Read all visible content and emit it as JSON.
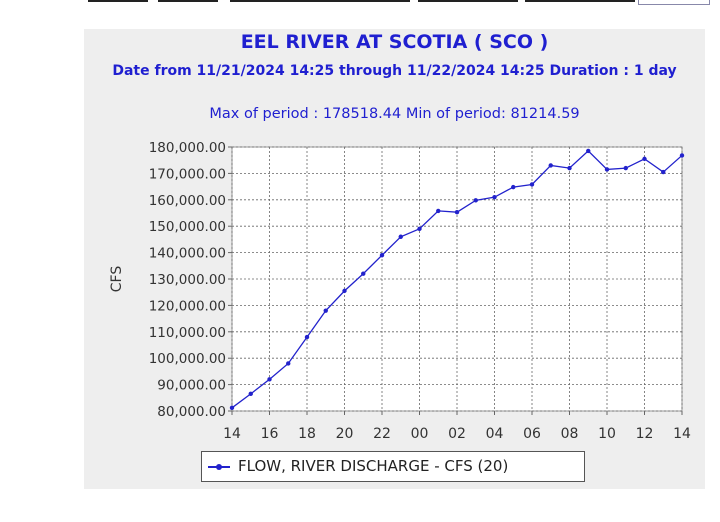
{
  "chart_data": {
    "type": "line",
    "title": "EEL RIVER AT SCOTIA ( SCO )",
    "subtitle": "Date from 11/21/2024 14:25 through 11/22/2024 14:25 Duration : 1 day",
    "max_min": "Max of period : 178518.44  Min of period: 81214.59",
    "xlabel": "",
    "ylabel": "CFS",
    "ylim": [
      80000,
      180000
    ],
    "y_ticks": [
      {
        "value": 80000,
        "label": "80,000.00"
      },
      {
        "value": 90000,
        "label": "90,000.00"
      },
      {
        "value": 100000,
        "label": "100,000.00"
      },
      {
        "value": 110000,
        "label": "110,000.00"
      },
      {
        "value": 120000,
        "label": "120,000.00"
      },
      {
        "value": 130000,
        "label": "130,000.00"
      },
      {
        "value": 140000,
        "label": "140,000.00"
      },
      {
        "value": 150000,
        "label": "150,000.00"
      },
      {
        "value": 160000,
        "label": "160,000.00"
      },
      {
        "value": 170000,
        "label": "170,000.00"
      },
      {
        "value": 180000,
        "label": "180,000.00"
      }
    ],
    "x_range": [
      14,
      38
    ],
    "x_ticks": [
      {
        "value": 14,
        "label": "14"
      },
      {
        "value": 16,
        "label": "16"
      },
      {
        "value": 18,
        "label": "18"
      },
      {
        "value": 20,
        "label": "20"
      },
      {
        "value": 22,
        "label": "22"
      },
      {
        "value": 24,
        "label": "00"
      },
      {
        "value": 26,
        "label": "02"
      },
      {
        "value": 28,
        "label": "04"
      },
      {
        "value": 30,
        "label": "06"
      },
      {
        "value": 32,
        "label": "08"
      },
      {
        "value": 34,
        "label": "10"
      },
      {
        "value": 36,
        "label": "12"
      },
      {
        "value": 38,
        "label": "14"
      }
    ],
    "series": [
      {
        "name": "FLOW, RIVER DISCHARGE - CFS (20)",
        "color": "#2222cc",
        "x": [
          14.0,
          15.0,
          16.0,
          17.0,
          18.0,
          19.0,
          20.0,
          21.0,
          22.0,
          23.0,
          24.0,
          25.0,
          26.0,
          27.0,
          28.0,
          29.0,
          30.0,
          31.0,
          32.0,
          33.0,
          34.0,
          35.0,
          36.0,
          37.0,
          38.0
        ],
        "values": [
          81214.59,
          86500,
          92000,
          98000,
          108000,
          118000,
          125500,
          132000,
          139000,
          146000,
          149000,
          155800,
          155300,
          159800,
          161000,
          164800,
          165800,
          173000,
          172000,
          178518.44,
          171500,
          172000,
          175500,
          170500,
          176800
        ]
      }
    ],
    "legend_position": "bottom",
    "grid": true
  }
}
